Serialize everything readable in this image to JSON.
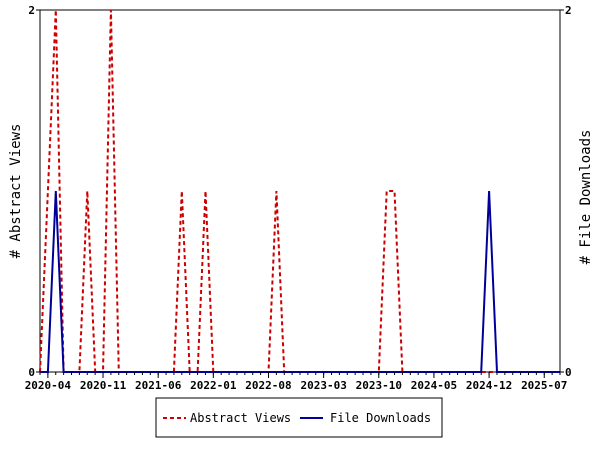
{
  "chart_data": {
    "type": "line",
    "x_start": "2020-03",
    "x_end": "2025-09",
    "x_ticks": [
      "2020-04",
      "2020-11",
      "2021-06",
      "2022-01",
      "2022-08",
      "2023-03",
      "2023-10",
      "2024-05",
      "2024-12",
      "2025-07"
    ],
    "ylabel": "# Abstract Views",
    "y2label": "# File Downloads",
    "ylim": [
      0,
      2
    ],
    "y_ticks": [
      0,
      2
    ],
    "y2lim": [
      0,
      2
    ],
    "y2_ticks": [
      0,
      2
    ],
    "grid": false,
    "legend_placement": "bottom",
    "series": [
      {
        "name": "Abstract Views",
        "axis": "left",
        "color": "#cc0000",
        "style": "dashed",
        "points": [
          [
            "2020-03",
            0
          ],
          [
            "2020-04",
            1
          ],
          [
            "2020-05",
            2
          ],
          [
            "2020-06",
            0
          ],
          [
            "2020-07",
            0
          ],
          [
            "2020-08",
            0
          ],
          [
            "2020-09",
            1
          ],
          [
            "2020-10",
            0
          ],
          [
            "2020-11",
            0
          ],
          [
            "2020-12",
            2
          ],
          [
            "2021-01",
            0
          ],
          [
            "2021-08",
            0
          ],
          [
            "2021-09",
            1
          ],
          [
            "2021-10",
            0
          ],
          [
            "2021-11",
            0
          ],
          [
            "2021-12",
            1
          ],
          [
            "2022-01",
            0
          ],
          [
            "2022-08",
            0
          ],
          [
            "2022-09",
            1
          ],
          [
            "2022-10",
            0
          ],
          [
            "2023-10",
            0
          ],
          [
            "2023-11",
            1
          ],
          [
            "2023-12",
            1
          ],
          [
            "2024-01",
            0
          ],
          [
            "2025-09",
            0
          ]
        ]
      },
      {
        "name": "File Downloads",
        "axis": "right",
        "color": "#000099",
        "style": "solid",
        "points": [
          [
            "2020-03",
            0
          ],
          [
            "2020-04",
            0
          ],
          [
            "2020-05",
            1
          ],
          [
            "2020-06",
            0
          ],
          [
            "2020-07",
            0
          ],
          [
            "2024-11",
            0
          ],
          [
            "2024-12",
            1
          ],
          [
            "2025-01",
            0
          ],
          [
            "2025-09",
            0
          ]
        ]
      }
    ]
  }
}
